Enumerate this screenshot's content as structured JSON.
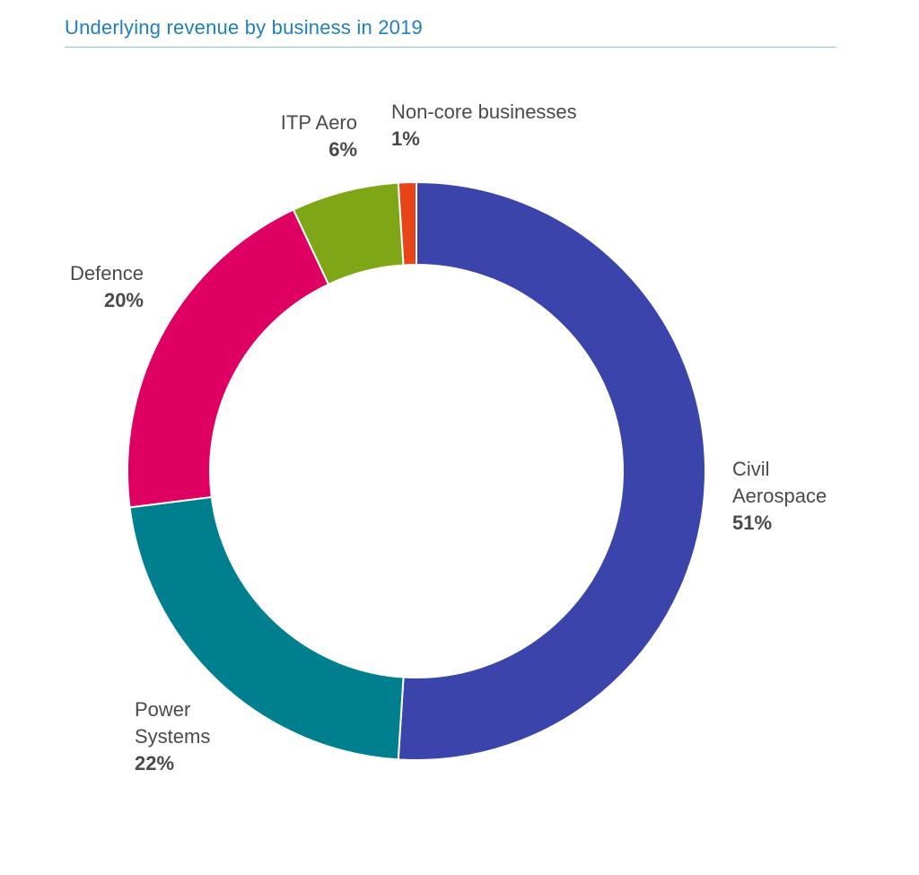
{
  "chart_data": {
    "type": "pie",
    "title": "Underlying revenue by business in 2019",
    "donut": true,
    "slices": [
      {
        "label": "Civil Aerospace",
        "value": 51,
        "value_label": "51%",
        "color": "#3b44ab"
      },
      {
        "label": "Power Systems",
        "value": 22,
        "value_label": "22%",
        "color": "#007f8f"
      },
      {
        "label": "Defence",
        "value": 20,
        "value_label": "20%",
        "color": "#de0063"
      },
      {
        "label": "ITP Aero",
        "value": 6,
        "value_label": "6%",
        "color": "#7ea617"
      },
      {
        "label": "Non-core businesses",
        "value": 1,
        "value_label": "1%",
        "color": "#e8441a"
      }
    ]
  },
  "labels": {
    "civil": {
      "line1": "Civil",
      "line2": "Aerospace"
    },
    "power": {
      "line1": "Power",
      "line2": "Systems"
    },
    "defence": {
      "line1": "Defence"
    },
    "itp": {
      "line1": "ITP Aero"
    },
    "noncore": {
      "line1": "Non-core businesses"
    }
  }
}
